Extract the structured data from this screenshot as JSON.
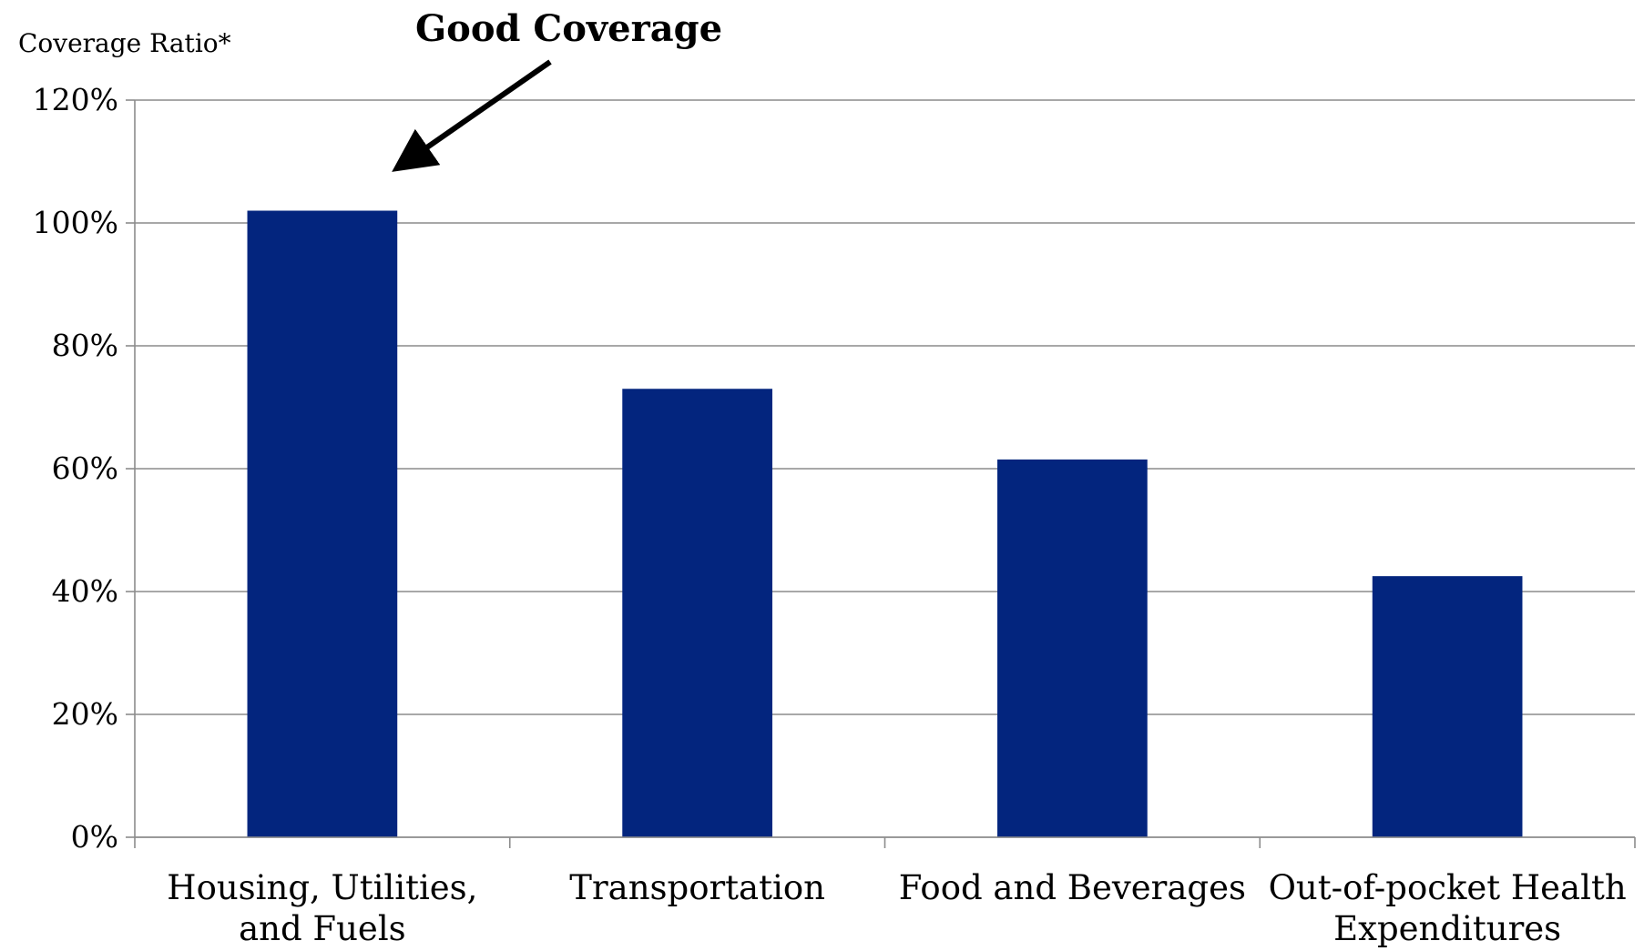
{
  "chart_data": {
    "type": "bar",
    "title": "",
    "xlabel": "",
    "ylabel": "Coverage Ratio*",
    "categories": [
      [
        "Housing, Utilities,",
        "and Fuels"
      ],
      [
        "Transportation"
      ],
      [
        "Food and Beverages"
      ],
      [
        "Out-of-pocket Health",
        "Expenditures"
      ]
    ],
    "values": [
      102,
      73,
      61.5,
      42.5
    ],
    "ylim": [
      0,
      120
    ],
    "yticks": [
      0,
      20,
      40,
      60,
      80,
      100,
      120
    ],
    "ytick_labels": [
      "0%",
      "20%",
      "40%",
      "60%",
      "80%",
      "100%",
      "120%"
    ],
    "grid": true,
    "legend": "none",
    "bar_color": "#03257E",
    "grid_color": "#8C8C8C",
    "annotation": {
      "text": "Good Coverage",
      "points_to_category_index": 0
    }
  }
}
